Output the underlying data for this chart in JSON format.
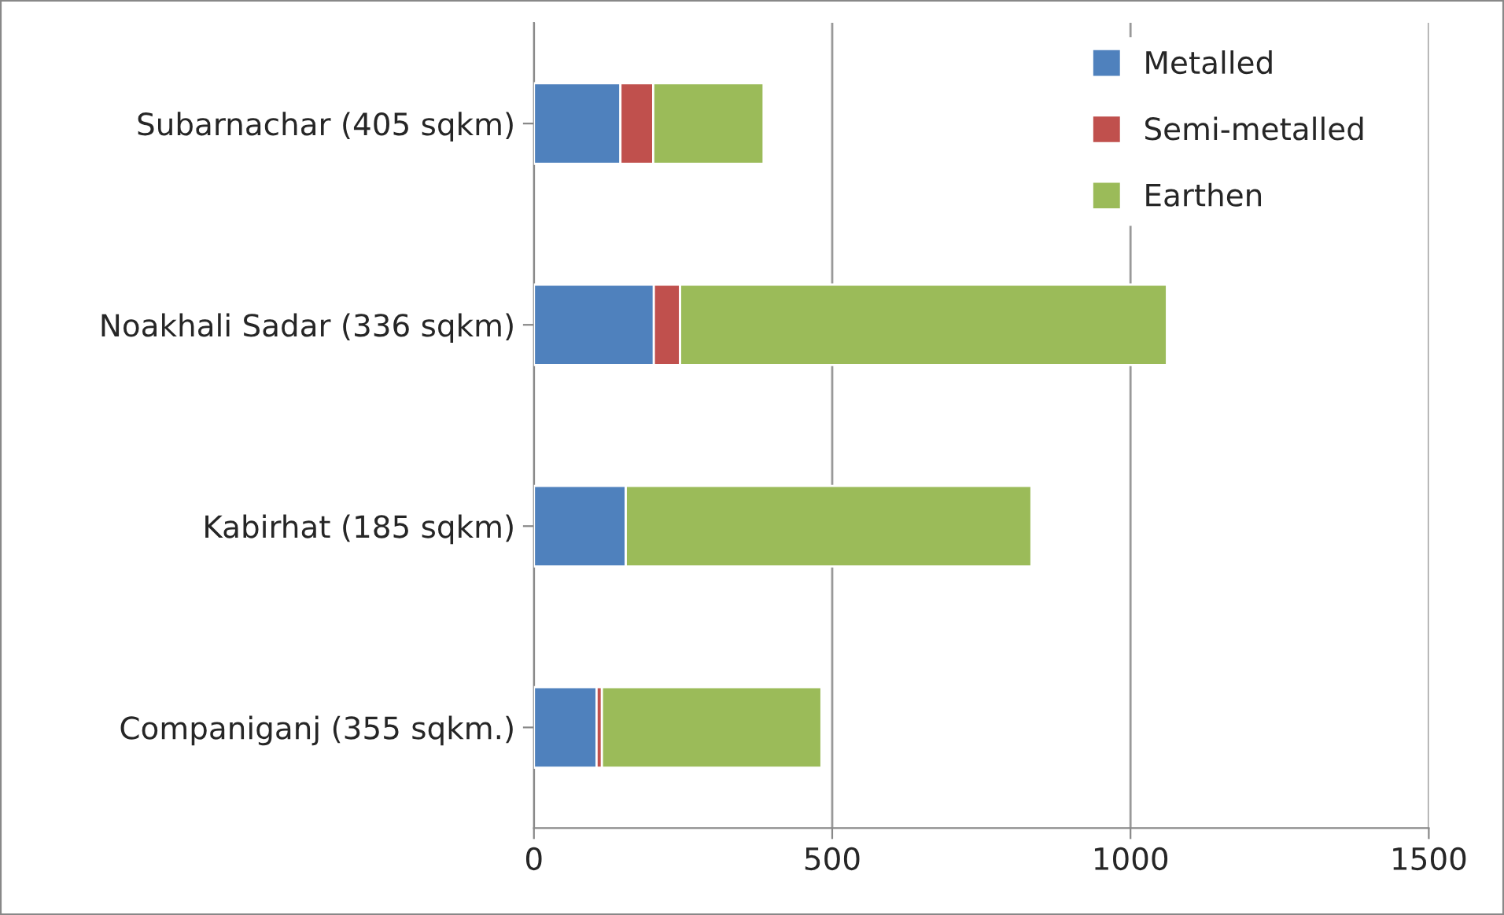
{
  "chart_data": {
    "type": "bar",
    "orientation": "horizontal",
    "stacked": true,
    "categories": [
      "Subarnachar (405 sqkm)",
      "Noakhali Sadar (336 sqkm)",
      "Kabirhat (185 sqkm)",
      "Companiganj (355 sqkm.)"
    ],
    "series": [
      {
        "name": "Metalled",
        "color": "#4f81bd",
        "values": [
          145,
          201,
          154,
          105
        ]
      },
      {
        "name": "Semi-metalled",
        "color": "#c0504d",
        "values": [
          55,
          44,
          0,
          9
        ]
      },
      {
        "name": "Earthen",
        "color": "#9bbb59",
        "values": [
          185,
          816,
          680,
          368
        ]
      }
    ],
    "xlim": [
      0,
      1500
    ],
    "xticks": [
      0,
      500,
      1000,
      1500
    ],
    "grid": "x",
    "legend": "top right"
  }
}
